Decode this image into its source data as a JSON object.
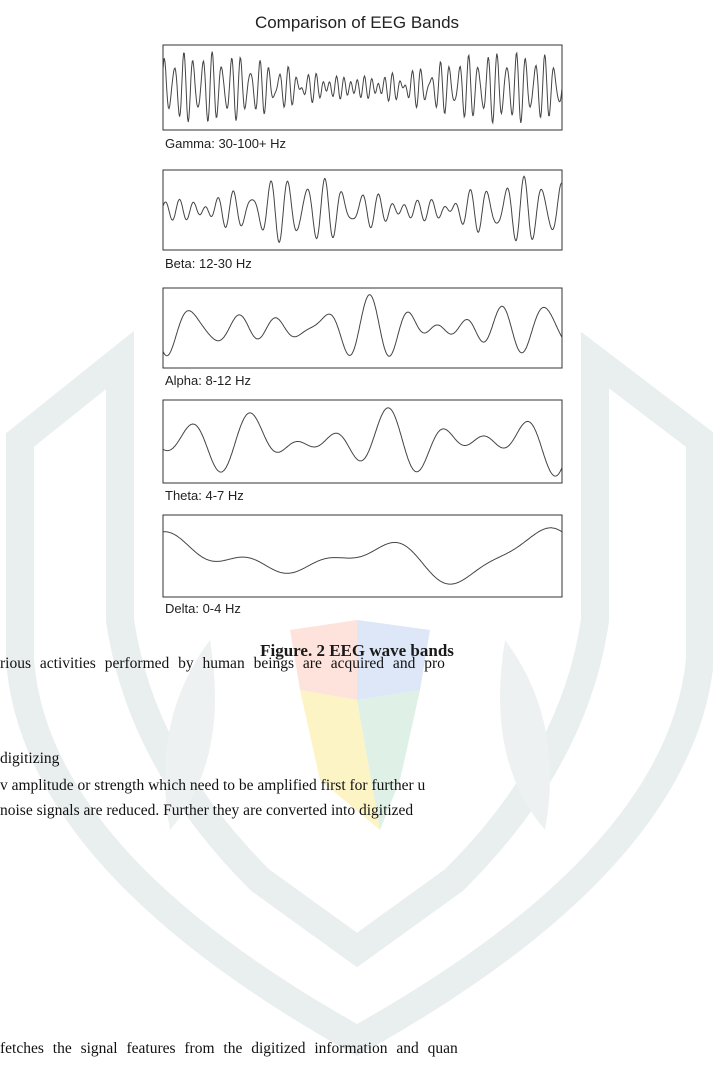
{
  "figure": {
    "title": "Comparison of EEG Bands",
    "bands": [
      "Gamma: 30-100+ Hz",
      "Beta: 12-30 Hz",
      "Alpha: 8-12 Hz",
      "Theta: 4-7 Hz",
      "Delta: 0-4 Hz"
    ],
    "caption": "Figure. 2 EEG wave bands"
  },
  "body": {
    "lines": [
      "rious activities performed by human beings are acquired and pro",
      "digitizing",
      "v amplitude or strength which need to be amplified first for further u",
      "noise signals are reduced. Further they are converted into digitized",
      "fetches the signal features from the digitized information and quan"
    ]
  }
}
